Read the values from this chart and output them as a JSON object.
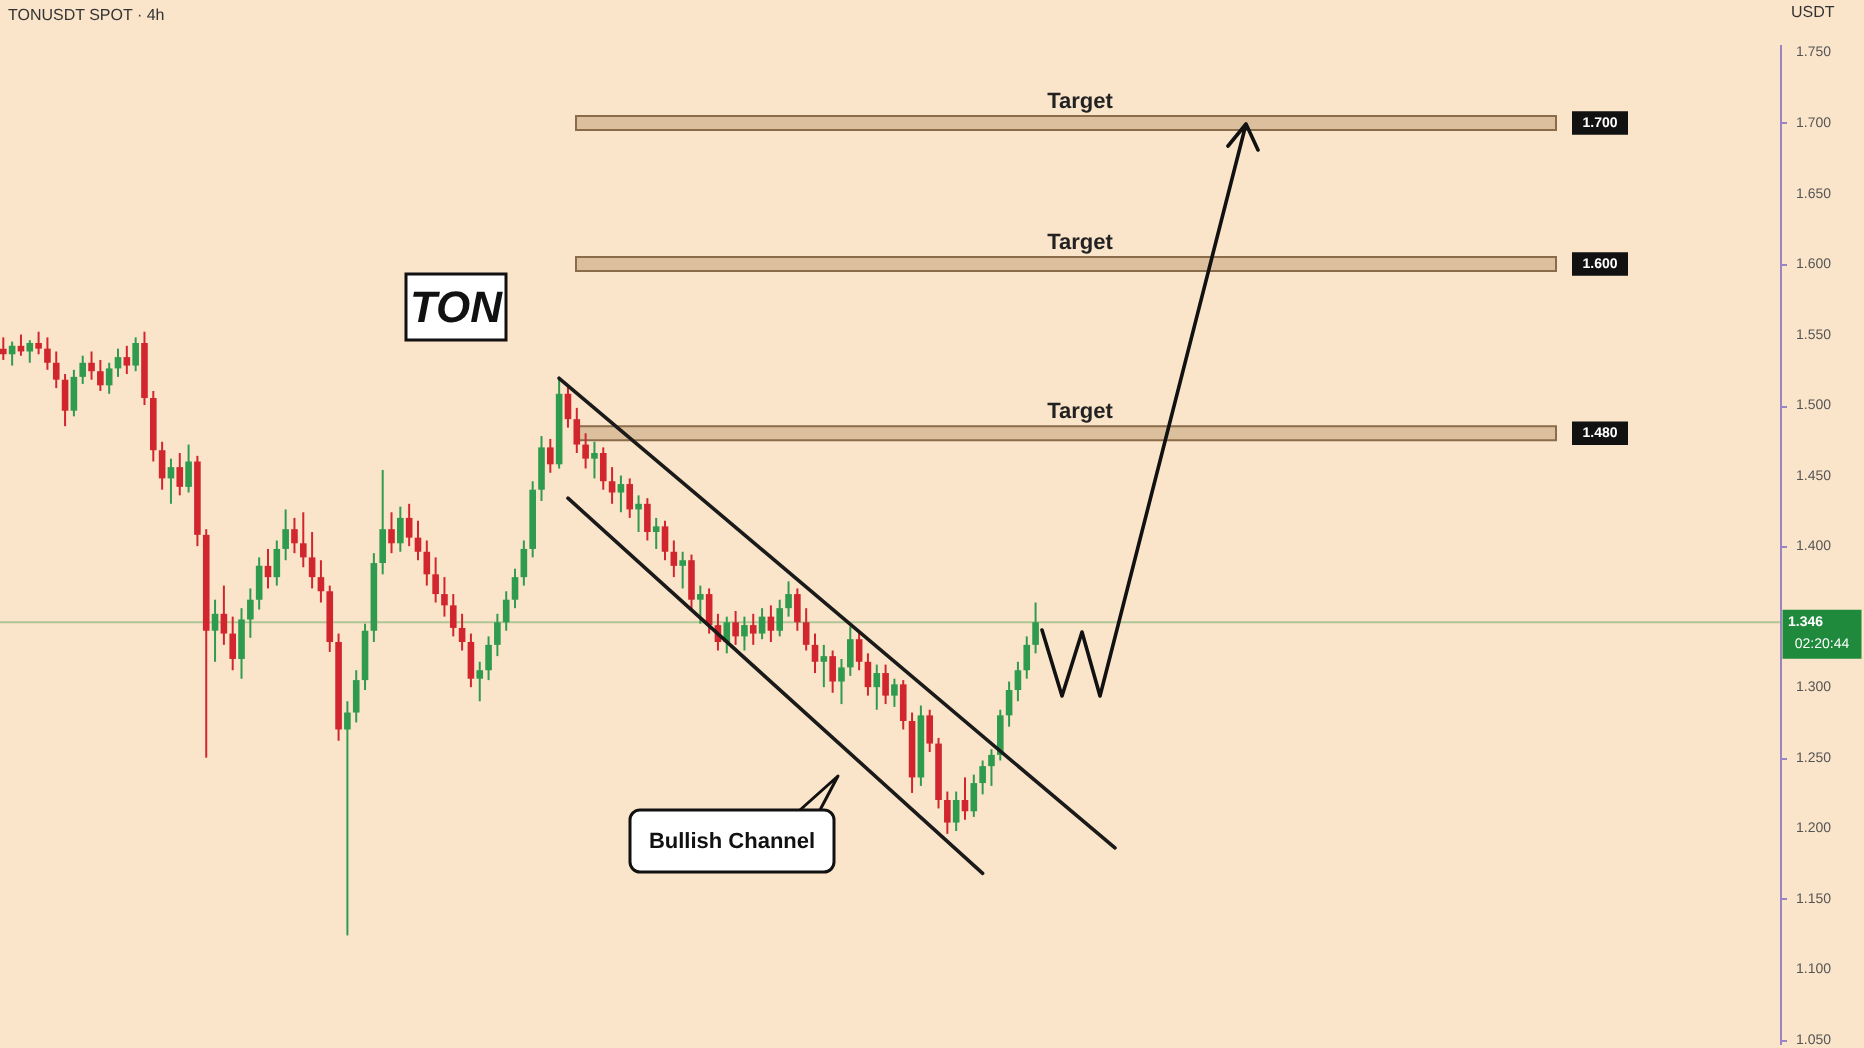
{
  "chart_data": {
    "type": "candlestick",
    "title": "TONUSDT SPOT · 4h",
    "ylabel": "USDT",
    "categories": [
      null,
      null,
      null,
      null,
      null,
      null,
      null,
      null,
      null,
      null,
      null,
      null,
      null,
      null,
      null,
      null,
      null,
      null,
      null,
      null,
      null,
      null,
      null,
      null,
      null,
      null,
      null,
      null,
      null,
      null,
      null,
      null,
      null,
      null,
      null,
      null,
      null,
      null,
      null,
      null,
      null,
      null,
      null,
      null,
      null,
      null,
      null,
      null,
      null,
      null,
      null,
      null,
      null,
      null,
      null,
      null,
      null,
      null,
      null,
      null,
      null,
      null,
      null,
      null,
      null,
      null,
      null,
      null,
      null,
      null,
      null,
      null,
      null,
      null,
      null,
      null,
      null,
      null,
      null,
      null,
      null,
      null,
      null,
      null,
      null,
      null,
      null,
      null,
      null,
      null,
      null,
      null,
      null,
      null,
      null,
      null,
      null,
      null,
      null,
      null,
      null,
      null,
      null,
      null,
      null,
      null,
      null,
      null,
      null,
      null,
      null,
      null,
      null,
      null,
      null,
      null,
      null,
      null,
      null,
      null,
      null,
      null,
      null,
      null,
      null,
      null,
      null,
      null,
      null,
      null,
      null,
      null,
      null,
      null,
      null,
      null,
      null,
      null,
      null,
      null,
      null,
      null,
      null,
      null,
      null,
      null,
      null,
      null,
      null,
      null,
      null,
      null,
      null,
      null,
      null,
      null,
      null,
      null,
      null,
      null,
      null,
      null,
      null,
      null,
      null,
      null,
      null,
      null,
      null,
      null,
      null,
      null,
      null,
      null,
      null,
      null,
      null,
      null,
      null,
      null,
      null,
      null,
      null,
      null,
      null,
      null,
      null,
      null,
      null,
      null,
      null,
      null,
      null,
      null,
      null,
      null,
      null,
      null,
      null,
      null,
      null,
      null
    ],
    "ohlc": [
      [
        1.54,
        1.548,
        1.532,
        1.536
      ],
      [
        1.536,
        1.545,
        1.528,
        1.542
      ],
      [
        1.542,
        1.55,
        1.535,
        1.538
      ],
      [
        1.538,
        1.546,
        1.53,
        1.544
      ],
      [
        1.544,
        1.552,
        1.536,
        1.54
      ],
      [
        1.54,
        1.548,
        1.525,
        1.53
      ],
      [
        1.53,
        1.538,
        1.512,
        1.518
      ],
      [
        1.518,
        1.522,
        1.485,
        1.496
      ],
      [
        1.496,
        1.525,
        1.492,
        1.52
      ],
      [
        1.52,
        1.535,
        1.515,
        1.53
      ],
      [
        1.53,
        1.538,
        1.518,
        1.524
      ],
      [
        1.524,
        1.532,
        1.51,
        1.514
      ],
      [
        1.514,
        1.53,
        1.508,
        1.526
      ],
      [
        1.526,
        1.54,
        1.52,
        1.534
      ],
      [
        1.534,
        1.542,
        1.522,
        1.528
      ],
      [
        1.528,
        1.548,
        1.524,
        1.544
      ],
      [
        1.544,
        1.552,
        1.5,
        1.505
      ],
      [
        1.505,
        1.51,
        1.46,
        1.468
      ],
      [
        1.468,
        1.474,
        1.44,
        1.448
      ],
      [
        1.448,
        1.462,
        1.43,
        1.456
      ],
      [
        1.456,
        1.466,
        1.436,
        1.442
      ],
      [
        1.442,
        1.472,
        1.438,
        1.46
      ],
      [
        1.46,
        1.464,
        1.4,
        1.408
      ],
      [
        1.408,
        1.412,
        1.25,
        1.34
      ],
      [
        1.34,
        1.362,
        1.318,
        1.352
      ],
      [
        1.352,
        1.372,
        1.33,
        1.338
      ],
      [
        1.338,
        1.35,
        1.312,
        1.32
      ],
      [
        1.32,
        1.356,
        1.306,
        1.348
      ],
      [
        1.348,
        1.37,
        1.335,
        1.362
      ],
      [
        1.362,
        1.392,
        1.355,
        1.386
      ],
      [
        1.386,
        1.398,
        1.37,
        1.378
      ],
      [
        1.378,
        1.404,
        1.372,
        1.398
      ],
      [
        1.398,
        1.426,
        1.39,
        1.412
      ],
      [
        1.412,
        1.42,
        1.395,
        1.402
      ],
      [
        1.402,
        1.424,
        1.385,
        1.392
      ],
      [
        1.392,
        1.41,
        1.37,
        1.378
      ],
      [
        1.378,
        1.39,
        1.36,
        1.368
      ],
      [
        1.368,
        1.372,
        1.325,
        1.332
      ],
      [
        1.332,
        1.338,
        1.262,
        1.27
      ],
      [
        1.27,
        1.29,
        1.124,
        1.282
      ],
      [
        1.282,
        1.312,
        1.275,
        1.305
      ],
      [
        1.305,
        1.345,
        1.298,
        1.34
      ],
      [
        1.34,
        1.395,
        1.332,
        1.388
      ],
      [
        1.388,
        1.454,
        1.38,
        1.412
      ],
      [
        1.412,
        1.424,
        1.395,
        1.402
      ],
      [
        1.402,
        1.428,
        1.396,
        1.42
      ],
      [
        1.42,
        1.43,
        1.4,
        1.406
      ],
      [
        1.406,
        1.418,
        1.39,
        1.396
      ],
      [
        1.396,
        1.404,
        1.372,
        1.38
      ],
      [
        1.38,
        1.392,
        1.36,
        1.366
      ],
      [
        1.366,
        1.378,
        1.35,
        1.358
      ],
      [
        1.358,
        1.366,
        1.336,
        1.342
      ],
      [
        1.342,
        1.352,
        1.326,
        1.332
      ],
      [
        1.332,
        1.338,
        1.3,
        1.306
      ],
      [
        1.306,
        1.318,
        1.29,
        1.312
      ],
      [
        1.312,
        1.336,
        1.305,
        1.33
      ],
      [
        1.33,
        1.352,
        1.322,
        1.346
      ],
      [
        1.346,
        1.368,
        1.34,
        1.362
      ],
      [
        1.362,
        1.384,
        1.356,
        1.378
      ],
      [
        1.378,
        1.404,
        1.372,
        1.398
      ],
      [
        1.398,
        1.446,
        1.392,
        1.44
      ],
      [
        1.44,
        1.478,
        1.432,
        1.47
      ],
      [
        1.47,
        1.476,
        1.452,
        1.458
      ],
      [
        1.458,
        1.52,
        1.455,
        1.508
      ],
      [
        1.508,
        1.514,
        1.484,
        1.49
      ],
      [
        1.49,
        1.498,
        1.466,
        1.472
      ],
      [
        1.472,
        1.48,
        1.455,
        1.462
      ],
      [
        1.462,
        1.474,
        1.448,
        1.466
      ],
      [
        1.466,
        1.47,
        1.44,
        1.446
      ],
      [
        1.446,
        1.456,
        1.43,
        1.438
      ],
      [
        1.438,
        1.45,
        1.424,
        1.444
      ],
      [
        1.444,
        1.448,
        1.42,
        1.426
      ],
      [
        1.426,
        1.436,
        1.41,
        1.43
      ],
      [
        1.43,
        1.434,
        1.404,
        1.41
      ],
      [
        1.41,
        1.42,
        1.398,
        1.414
      ],
      [
        1.414,
        1.418,
        1.39,
        1.396
      ],
      [
        1.396,
        1.404,
        1.378,
        1.386
      ],
      [
        1.386,
        1.396,
        1.37,
        1.39
      ],
      [
        1.39,
        1.394,
        1.355,
        1.362
      ],
      [
        1.362,
        1.372,
        1.345,
        1.366
      ],
      [
        1.366,
        1.37,
        1.338,
        1.344
      ],
      [
        1.344,
        1.352,
        1.326,
        1.332
      ],
      [
        1.332,
        1.35,
        1.324,
        1.346
      ],
      [
        1.346,
        1.354,
        1.33,
        1.336
      ],
      [
        1.336,
        1.35,
        1.326,
        1.344
      ],
      [
        1.344,
        1.352,
        1.33,
        1.338
      ],
      [
        1.338,
        1.356,
        1.334,
        1.35
      ],
      [
        1.35,
        1.358,
        1.332,
        1.34
      ],
      [
        1.34,
        1.362,
        1.336,
        1.356
      ],
      [
        1.356,
        1.375,
        1.35,
        1.366
      ],
      [
        1.366,
        1.37,
        1.34,
        1.346
      ],
      [
        1.346,
        1.356,
        1.326,
        1.33
      ],
      [
        1.33,
        1.338,
        1.31,
        1.318
      ],
      [
        1.318,
        1.33,
        1.3,
        1.322
      ],
      [
        1.322,
        1.326,
        1.296,
        1.304
      ],
      [
        1.304,
        1.32,
        1.288,
        1.314
      ],
      [
        1.314,
        1.343,
        1.308,
        1.334
      ],
      [
        1.334,
        1.34,
        1.312,
        1.318
      ],
      [
        1.318,
        1.324,
        1.294,
        1.3
      ],
      [
        1.3,
        1.316,
        1.284,
        1.31
      ],
      [
        1.31,
        1.316,
        1.288,
        1.294
      ],
      [
        1.294,
        1.306,
        1.286,
        1.302
      ],
      [
        1.302,
        1.305,
        1.27,
        1.276
      ],
      [
        1.276,
        1.282,
        1.225,
        1.236
      ],
      [
        1.236,
        1.287,
        1.23,
        1.28
      ],
      [
        1.28,
        1.284,
        1.254,
        1.26
      ],
      [
        1.26,
        1.264,
        1.214,
        1.22
      ],
      [
        1.22,
        1.226,
        1.196,
        1.204
      ],
      [
        1.204,
        1.226,
        1.198,
        1.22
      ],
      [
        1.22,
        1.236,
        1.206,
        1.212
      ],
      [
        1.212,
        1.238,
        1.208,
        1.232
      ],
      [
        1.232,
        1.248,
        1.224,
        1.244
      ],
      [
        1.244,
        1.256,
        1.23,
        1.252
      ],
      [
        1.252,
        1.284,
        1.248,
        1.28
      ],
      [
        1.28,
        1.304,
        1.272,
        1.298
      ],
      [
        1.298,
        1.318,
        1.29,
        1.312
      ],
      [
        1.312,
        1.336,
        1.306,
        1.33
      ],
      [
        1.33,
        1.36,
        1.324,
        1.346
      ],
      null,
      null,
      null,
      null,
      null,
      null,
      null,
      null,
      null,
      null,
      null,
      null,
      null,
      null,
      null,
      null,
      null,
      null,
      null,
      null,
      null,
      null,
      null,
      null,
      null,
      null,
      null,
      null,
      null,
      null,
      null,
      null,
      null,
      null,
      null,
      null,
      null,
      null,
      null,
      null,
      null,
      null,
      null,
      null,
      null,
      null,
      null,
      null,
      null,
      null,
      null,
      null,
      null,
      null,
      null,
      null,
      null,
      null,
      null,
      null,
      null,
      null,
      null,
      null,
      null,
      null,
      null,
      null,
      null,
      null,
      null,
      null,
      null,
      null,
      null,
      null,
      null,
      null,
      null,
      null,
      null,
      null,
      null,
      null
    ],
    "colors": [
      "#d1262e",
      "#2e9b4e",
      "#d1262e",
      "#2e9b4e",
      "#d1262e",
      "#d1262e",
      "#d1262e",
      "#d1262e",
      "#2e9b4e",
      "#2e9b4e",
      "#d1262e",
      "#d1262e",
      "#2e9b4e",
      "#2e9b4e",
      "#d1262e",
      "#2e9b4e",
      "#d1262e",
      "#d1262e",
      "#d1262e",
      "#2e9b4e",
      "#d1262e",
      "#2e9b4e",
      "#d1262e",
      "#d1262e",
      "#2e9b4e",
      "#d1262e",
      "#d1262e",
      "#2e9b4e",
      "#2e9b4e",
      "#2e9b4e",
      "#d1262e",
      "#2e9b4e",
      "#2e9b4e",
      "#d1262e",
      "#d1262e",
      "#d1262e",
      "#d1262e",
      "#d1262e",
      "#d1262e",
      "#2e9b4e",
      "#2e9b4e",
      "#2e9b4e",
      "#2e9b4e",
      "#2e9b4e",
      "#d1262e",
      "#2e9b4e",
      "#d1262e",
      "#d1262e",
      "#d1262e",
      "#d1262e",
      "#d1262e",
      "#d1262e",
      "#d1262e",
      "#d1262e",
      "#2e9b4e",
      "#2e9b4e",
      "#2e9b4e",
      "#2e9b4e",
      "#2e9b4e",
      "#2e9b4e",
      "#2e9b4e",
      "#2e9b4e",
      "#d1262e",
      "#2e9b4e",
      "#d1262e",
      "#d1262e",
      "#d1262e",
      "#2e9b4e",
      "#d1262e",
      "#d1262e",
      "#2e9b4e",
      "#d1262e",
      "#2e9b4e",
      "#d1262e",
      "#2e9b4e",
      "#d1262e",
      "#d1262e",
      "#2e9b4e",
      "#d1262e",
      "#2e9b4e",
      "#d1262e",
      "#d1262e",
      "#2e9b4e",
      "#d1262e",
      "#2e9b4e",
      "#d1262e",
      "#2e9b4e",
      "#d1262e",
      "#2e9b4e",
      "#2e9b4e",
      "#d1262e",
      "#d1262e",
      "#d1262e",
      "#2e9b4e",
      "#d1262e",
      "#2e9b4e",
      "#2e9b4e",
      "#d1262e",
      "#d1262e",
      "#2e9b4e",
      "#d1262e",
      "#2e9b4e",
      "#d1262e",
      "#d1262e",
      "#2e9b4e",
      "#d1262e",
      "#d1262e",
      "#d1262e",
      "#2e9b4e",
      "#d1262e",
      "#2e9b4e",
      "#2e9b4e",
      "#2e9b4e",
      "#2e9b4e",
      "#2e9b4e",
      "#2e9b4e",
      "#2e9b4e",
      "#2e9b4e",
      null,
      null,
      null,
      null,
      null,
      null,
      null,
      null,
      null,
      null,
      null,
      null,
      null,
      null,
      null,
      null,
      null,
      null,
      null,
      null,
      null,
      null,
      null,
      null,
      null,
      null,
      null,
      null,
      null,
      null,
      null,
      null,
      null,
      null,
      null,
      null,
      null,
      null,
      null,
      null,
      null,
      null,
      null,
      null,
      null,
      null,
      null,
      null,
      null,
      null,
      null,
      null,
      null,
      null,
      null,
      null,
      null,
      null,
      null,
      null,
      null,
      null,
      null,
      null,
      null,
      null,
      null,
      null,
      null,
      null,
      null,
      null,
      null,
      null,
      null,
      null,
      null,
      null,
      null,
      null,
      null,
      null,
      null,
      null
    ],
    "ylim": [
      1.047,
      1.756
    ],
    "yticks": [
      {
        "value": 1.05,
        "label": "1.050"
      },
      {
        "value": 1.1,
        "label": "1.100"
      },
      {
        "value": 1.15,
        "label": "1.150"
      },
      {
        "value": 1.2,
        "label": "1.200"
      },
      {
        "value": 1.25,
        "label": "1.250"
      },
      {
        "value": 1.3,
        "label": "1.300"
      },
      {
        "value": 1.4,
        "label": "1.400"
      },
      {
        "value": 1.45,
        "label": "1.450"
      },
      {
        "value": 1.5,
        "label": "1.500"
      },
      {
        "value": 1.55,
        "label": "1.550"
      },
      {
        "value": 1.6,
        "label": "1.600"
      },
      {
        "value": 1.65,
        "label": "1.650"
      },
      {
        "value": 1.7,
        "label": "1.700"
      },
      {
        "value": 1.75,
        "label": "1.750"
      }
    ],
    "tick_labels": "y",
    "series": [
      {
        "type": "line",
        "color": "#1a1a1a",
        "values": [
          null,
          null,
          null,
          null,
          null,
          null,
          null,
          null,
          null,
          null,
          null,
          null,
          null,
          null,
          null,
          null,
          null,
          null,
          null,
          null,
          null,
          null,
          null,
          null,
          null,
          null,
          null,
          null,
          null,
          null,
          null,
          null,
          null,
          null,
          null,
          null,
          null,
          null,
          null,
          null,
          null,
          null,
          null,
          null,
          null,
          null,
          null,
          null,
          null,
          null,
          null,
          null,
          null,
          null,
          null,
          null,
          null,
          null,
          null,
          null,
          null,
          null,
          null,
          1.519,
          null,
          null,
          null,
          null,
          null,
          null,
          null,
          null,
          null,
          null,
          null,
          null,
          null,
          null,
          null,
          null,
          null,
          null,
          null,
          null,
          null,
          null,
          null,
          null,
          null,
          null,
          null,
          null,
          null,
          null,
          null,
          null,
          null,
          null,
          null,
          null,
          null,
          null,
          null,
          null,
          null,
          null,
          null,
          null,
          null,
          null,
          null,
          null,
          null,
          null,
          null,
          null,
          null,
          null,
          null,
          null,
          null,
          null,
          null,
          null,
          null,
          null,
          1.186,
          null,
          null,
          null,
          null,
          null,
          null,
          null,
          null,
          null,
          null,
          null,
          null,
          null,
          null,
          null,
          null,
          null,
          null,
          null,
          null,
          null,
          null,
          null,
          null,
          null,
          null,
          null,
          null,
          null,
          null,
          null,
          null,
          null,
          null,
          null,
          null,
          null,
          null,
          null,
          null,
          null,
          null,
          null,
          null,
          null,
          null,
          null,
          null,
          null,
          null,
          null,
          null,
          null,
          null,
          null,
          null,
          null,
          null,
          null,
          null,
          null,
          null,
          null,
          null,
          null,
          null,
          null,
          null,
          null,
          null,
          null,
          null,
          null,
          null,
          null
        ]
      },
      {
        "type": "line",
        "color": "#1a1a1a",
        "values": [
          null,
          null,
          null,
          null,
          null,
          null,
          null,
          null,
          null,
          null,
          null,
          null,
          null,
          null,
          null,
          null,
          null,
          null,
          null,
          null,
          null,
          null,
          null,
          null,
          null,
          null,
          null,
          null,
          null,
          null,
          null,
          null,
          null,
          null,
          null,
          null,
          null,
          null,
          null,
          null,
          null,
          null,
          null,
          null,
          null,
          null,
          null,
          null,
          null,
          null,
          null,
          null,
          null,
          null,
          null,
          null,
          null,
          null,
          null,
          null,
          null,
          null,
          null,
          null,
          1.434,
          null,
          null,
          null,
          null,
          null,
          null,
          null,
          null,
          null,
          null,
          null,
          null,
          null,
          null,
          null,
          null,
          null,
          null,
          null,
          null,
          null,
          null,
          null,
          null,
          null,
          null,
          null,
          null,
          null,
          null,
          null,
          null,
          null,
          null,
          null,
          null,
          null,
          null,
          null,
          null,
          null,
          null,
          null,
          null,
          null,
          null,
          1.168,
          null,
          null,
          null,
          null,
          null,
          null,
          null,
          null,
          null,
          null,
          null,
          null,
          null,
          null,
          null,
          null,
          null,
          null,
          null,
          null,
          null,
          null,
          null,
          null,
          null,
          null,
          null,
          null,
          null,
          null,
          null,
          null,
          null,
          null,
          null,
          null,
          null,
          null,
          null,
          null,
          null,
          null,
          null,
          null,
          null,
          null,
          null,
          null,
          null,
          null,
          null,
          null,
          null,
          null,
          null,
          null,
          null,
          null,
          null,
          null,
          null,
          null,
          null,
          null,
          null,
          null,
          null,
          null,
          null,
          null,
          null,
          null,
          null,
          null,
          null,
          null,
          null,
          null,
          null,
          null,
          null,
          null,
          null,
          null,
          null,
          null,
          null,
          null,
          null,
          null
        ]
      }
    ],
    "bands": [
      {
        "axis": "y",
        "from": 1.695,
        "to": 1.705,
        "label": "Target",
        "color": "#dcc09e"
      },
      {
        "axis": "y",
        "from": 1.595,
        "to": 1.605,
        "label": "Target",
        "color": "#dcc09e"
      },
      {
        "axis": "y",
        "from": 1.475,
        "to": 1.485,
        "label": "Target",
        "color": "#dcc09e"
      }
    ],
    "ref_lines": [
      {
        "axis": "y",
        "value": 1.346,
        "label": "1.346",
        "color": "#1f8a3c"
      }
    ],
    "annotations": [
      "TON",
      "Bullish Channel",
      {
        "text": "1.700",
        "y": 1.7
      },
      {
        "text": "1.600",
        "y": 1.6
      },
      {
        "text": "1.480",
        "y": 1.48
      },
      "02:20:44"
    ]
  }
}
